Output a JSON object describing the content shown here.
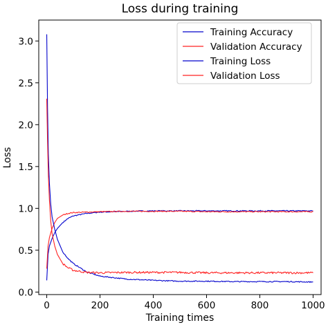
{
  "chart_data": {
    "type": "line",
    "title": "Loss during training",
    "xlabel": "Training times",
    "ylabel": "Loss",
    "xlim": [
      -30,
      1030
    ],
    "ylim": [
      -0.03,
      3.25
    ],
    "xticks": [
      0,
      200,
      400,
      600,
      800,
      1000
    ],
    "yticks": [
      0.0,
      0.5,
      1.0,
      1.5,
      2.0,
      2.5,
      3.0
    ],
    "grid": false,
    "legend_position": "top-right",
    "series": [
      {
        "name": "Training Accuracy",
        "color": "#0000cc",
        "x": [
          0,
          5,
          10,
          20,
          30,
          40,
          60,
          80,
          100,
          150,
          200,
          300,
          400,
          500,
          600,
          700,
          800,
          900,
          1000
        ],
        "y": [
          0.14,
          0.45,
          0.55,
          0.64,
          0.71,
          0.76,
          0.83,
          0.88,
          0.91,
          0.94,
          0.955,
          0.965,
          0.97,
          0.97,
          0.97,
          0.97,
          0.97,
          0.97,
          0.97
        ]
      },
      {
        "name": "Validation Accuracy",
        "color": "#ff2222",
        "x": [
          0,
          5,
          10,
          20,
          30,
          40,
          60,
          80,
          100,
          150,
          200,
          300,
          400,
          500,
          600,
          700,
          800,
          900,
          1000
        ],
        "y": [
          0.28,
          0.55,
          0.65,
          0.76,
          0.83,
          0.88,
          0.92,
          0.94,
          0.95,
          0.955,
          0.96,
          0.965,
          0.965,
          0.965,
          0.96,
          0.96,
          0.96,
          0.96,
          0.96
        ]
      },
      {
        "name": "Training Loss",
        "color": "#0000cc",
        "x": [
          0,
          3,
          6,
          10,
          15,
          20,
          30,
          40,
          60,
          80,
          100,
          150,
          200,
          300,
          400,
          500,
          600,
          700,
          800,
          900,
          1000
        ],
        "y": [
          3.08,
          2.2,
          1.65,
          1.3,
          1.05,
          0.9,
          0.75,
          0.63,
          0.48,
          0.4,
          0.34,
          0.24,
          0.19,
          0.155,
          0.14,
          0.13,
          0.13,
          0.125,
          0.125,
          0.125,
          0.12
        ]
      },
      {
        "name": "Validation Loss",
        "color": "#ff2222",
        "x": [
          0,
          3,
          6,
          10,
          15,
          20,
          30,
          40,
          60,
          80,
          100,
          150,
          200,
          300,
          400,
          500,
          600,
          700,
          800,
          900,
          1000
        ],
        "y": [
          2.31,
          1.8,
          1.4,
          1.1,
          0.85,
          0.7,
          0.55,
          0.45,
          0.34,
          0.29,
          0.26,
          0.235,
          0.23,
          0.235,
          0.235,
          0.235,
          0.23,
          0.23,
          0.23,
          0.23,
          0.23
        ]
      }
    ]
  }
}
